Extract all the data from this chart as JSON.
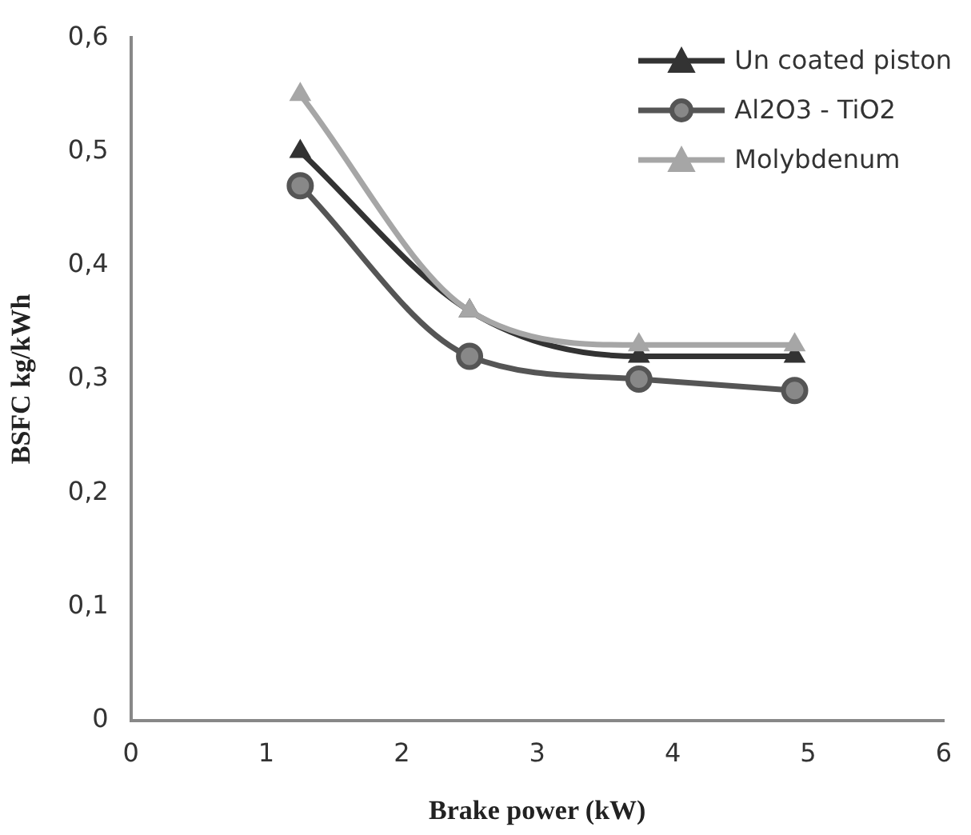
{
  "chart_data": {
    "type": "line",
    "xlabel": "Brake power (kW)",
    "ylabel": "BSFC kg/kWh",
    "x": [
      1.25,
      2.5,
      3.75,
      4.9
    ],
    "xlim": [
      0,
      6
    ],
    "xticks": [
      0,
      1,
      2,
      3,
      4,
      5,
      6
    ],
    "ylim": [
      0,
      0.6
    ],
    "yticks": [
      {
        "value": 0,
        "label": "0"
      },
      {
        "value": 0.1,
        "label": "0,1"
      },
      {
        "value": 0.2,
        "label": "0,2"
      },
      {
        "value": 0.3,
        "label": "0,3"
      },
      {
        "value": 0.4,
        "label": "0,4"
      },
      {
        "value": 0.5,
        "label": "0,5"
      },
      {
        "value": 0.6,
        "label": "0,6"
      }
    ],
    "grid": false,
    "legend": "top right",
    "series": [
      {
        "name": "Un coated piston",
        "color": "#333333",
        "marker": "triangle",
        "values": [
          0.5,
          0.36,
          0.32,
          0.32
        ]
      },
      {
        "name": "Al2O3 - TiO2",
        "color": "#555555",
        "marker": "circle",
        "values": [
          0.47,
          0.32,
          0.3,
          0.29
        ]
      },
      {
        "name": "Molybdenum",
        "color": "#a6a6a6",
        "marker": "triangle",
        "values": [
          0.55,
          0.36,
          0.33,
          0.33
        ]
      }
    ]
  }
}
